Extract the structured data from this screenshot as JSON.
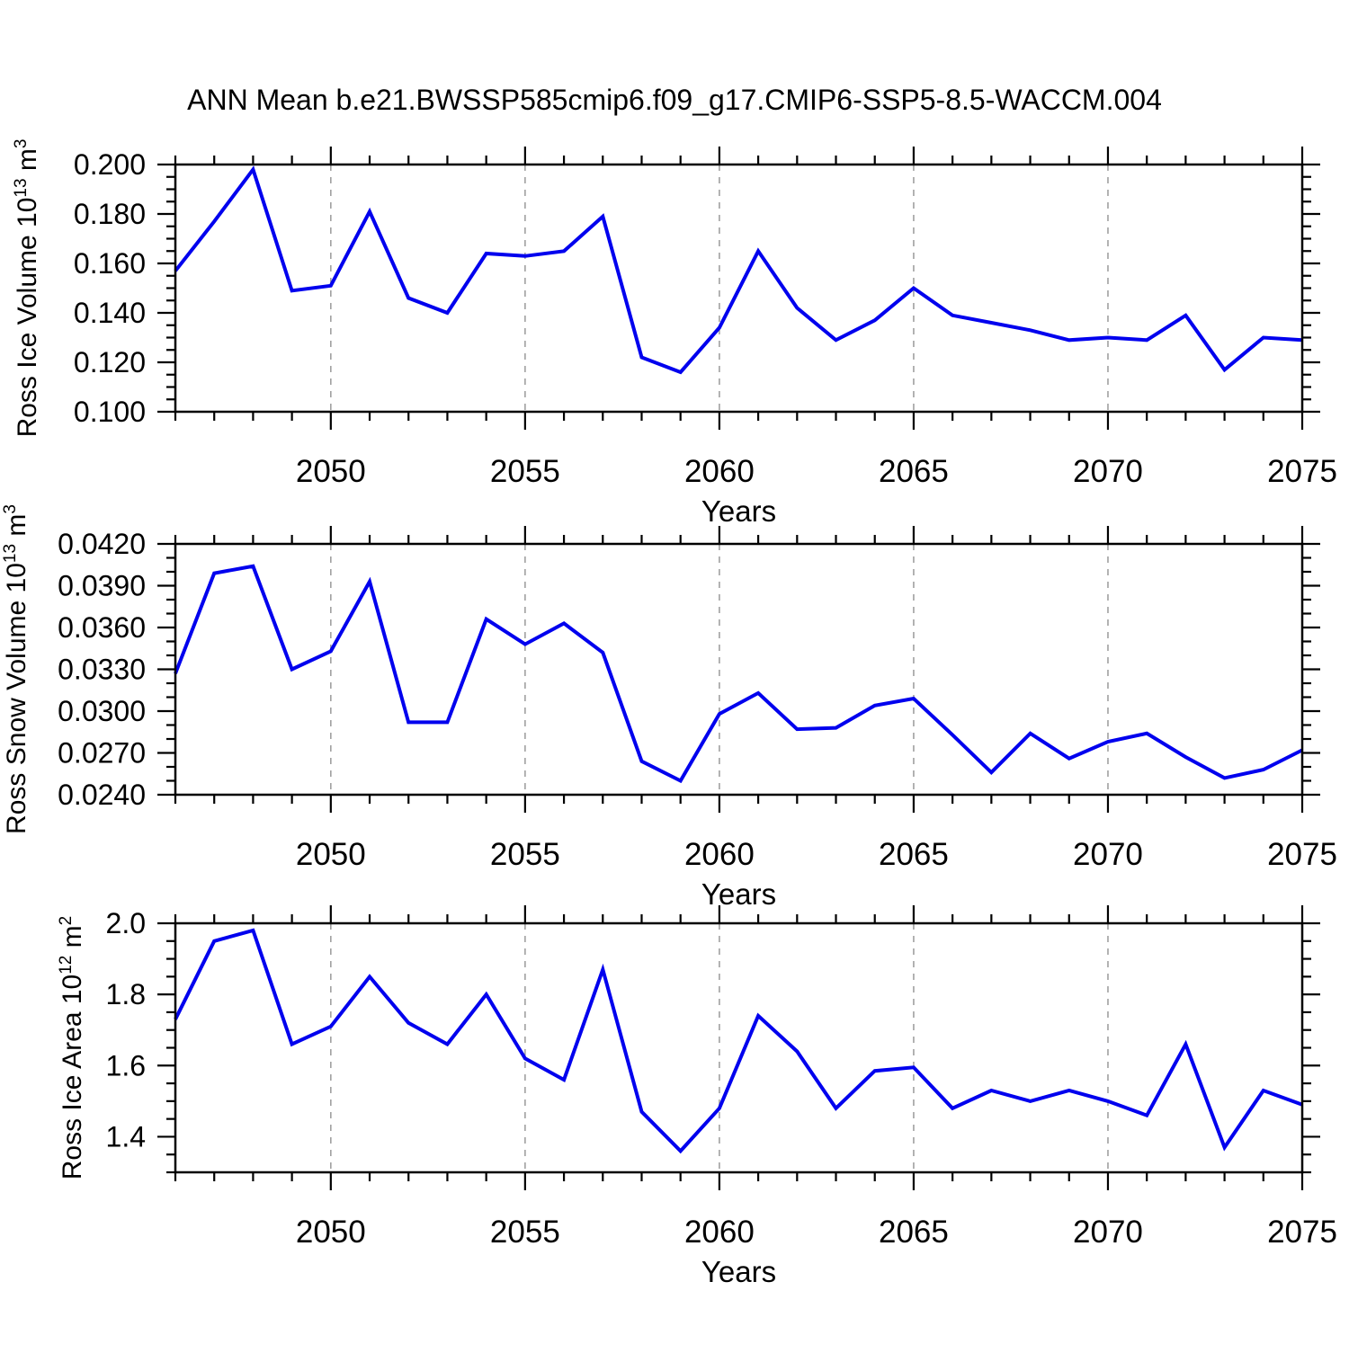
{
  "title": "ANN Mean b.e21.BWSSP585cmip6.f09_g17.CMIP6-SSP5-8.5-WACCM.004",
  "colors": {
    "line": "#0000EE",
    "axis": "#000000",
    "grid": "#A0A0A0",
    "text": "#000000",
    "background": "#FFFFFF"
  },
  "x_axis": {
    "label": "Years",
    "range": [
      2046,
      2075
    ],
    "major_ticks": [
      2050,
      2055,
      2060,
      2065,
      2070,
      2075
    ],
    "major_tick_labels": [
      "2050",
      "2055",
      "2060",
      "2065",
      "2070",
      "2075"
    ],
    "minor_tick_step": 1,
    "gridlines": [
      2050,
      2055,
      2060,
      2065,
      2070
    ]
  },
  "chart_data": [
    {
      "type": "line",
      "name": "ross-ice-volume",
      "ylabel": "Ross Ice Volume 10^13 m^3",
      "ylabel_parts": [
        {
          "t": "Ross Ice Volume 10"
        },
        {
          "t": "13",
          "sup": true
        },
        {
          "t": " m"
        },
        {
          "t": "3",
          "sup": true
        }
      ],
      "xlabel": "Years",
      "ylim": [
        0.1,
        0.2
      ],
      "y_minor_step": 0.005,
      "yticks": [
        {
          "v": 0.1,
          "label": "0.100"
        },
        {
          "v": 0.12,
          "label": "0.120"
        },
        {
          "v": 0.14,
          "label": "0.140"
        },
        {
          "v": 0.16,
          "label": "0.160"
        },
        {
          "v": 0.18,
          "label": "0.180"
        },
        {
          "v": 0.2,
          "label": "0.200"
        }
      ],
      "x": [
        2046,
        2047,
        2048,
        2049,
        2050,
        2051,
        2052,
        2053,
        2054,
        2055,
        2056,
        2057,
        2058,
        2059,
        2060,
        2061,
        2062,
        2063,
        2064,
        2065,
        2066,
        2067,
        2068,
        2069,
        2070,
        2071,
        2072,
        2073,
        2074,
        2075
      ],
      "values": [
        0.157,
        0.177,
        0.198,
        0.149,
        0.151,
        0.181,
        0.146,
        0.14,
        0.164,
        0.163,
        0.165,
        0.179,
        0.122,
        0.116,
        0.134,
        0.165,
        0.142,
        0.129,
        0.137,
        0.15,
        0.139,
        0.136,
        0.133,
        0.129,
        0.13,
        0.129,
        0.139,
        0.117,
        0.13,
        0.129
      ]
    },
    {
      "type": "line",
      "name": "ross-snow-volume",
      "ylabel": "Ross Snow Volume 10^13 m^3",
      "ylabel_parts": [
        {
          "t": "Ross Snow Volume 10"
        },
        {
          "t": "13",
          "sup": true
        },
        {
          "t": " m"
        },
        {
          "t": "3",
          "sup": true
        }
      ],
      "xlabel": "Years",
      "ylim": [
        0.024,
        0.042
      ],
      "y_minor_step": 0.001,
      "yticks": [
        {
          "v": 0.024,
          "label": "0.0240"
        },
        {
          "v": 0.027,
          "label": "0.0270"
        },
        {
          "v": 0.03,
          "label": "0.0300"
        },
        {
          "v": 0.033,
          "label": "0.0330"
        },
        {
          "v": 0.036,
          "label": "0.0360"
        },
        {
          "v": 0.039,
          "label": "0.0390"
        },
        {
          "v": 0.042,
          "label": "0.0420"
        }
      ],
      "x": [
        2046,
        2047,
        2048,
        2049,
        2050,
        2051,
        2052,
        2053,
        2054,
        2055,
        2056,
        2057,
        2058,
        2059,
        2060,
        2061,
        2062,
        2063,
        2064,
        2065,
        2066,
        2067,
        2068,
        2069,
        2070,
        2071,
        2072,
        2073,
        2074,
        2075
      ],
      "values": [
        0.0327,
        0.0399,
        0.0404,
        0.033,
        0.0343,
        0.0393,
        0.0292,
        0.0292,
        0.0366,
        0.0348,
        0.0363,
        0.0342,
        0.0264,
        0.025,
        0.0298,
        0.0313,
        0.0287,
        0.0288,
        0.0304,
        0.0309,
        0.0283,
        0.0256,
        0.0284,
        0.0266,
        0.0278,
        0.0284,
        0.0267,
        0.0252,
        0.0258,
        0.0272
      ]
    },
    {
      "type": "line",
      "name": "ross-ice-area",
      "ylabel": "Ross Ice Area 10^12 m^2",
      "ylabel_parts": [
        {
          "t": "Ross Ice Area 10"
        },
        {
          "t": "12",
          "sup": true
        },
        {
          "t": " m"
        },
        {
          "t": "2",
          "sup": true
        }
      ],
      "xlabel": "Years",
      "ylim": [
        1.3,
        2.0
      ],
      "y_minor_step": 0.05,
      "yticks": [
        {
          "v": 1.4,
          "label": "1.4"
        },
        {
          "v": 1.6,
          "label": "1.6"
        },
        {
          "v": 1.8,
          "label": "1.8"
        },
        {
          "v": 2.0,
          "label": "2.0"
        }
      ],
      "x": [
        2046,
        2047,
        2048,
        2049,
        2050,
        2051,
        2052,
        2053,
        2054,
        2055,
        2056,
        2057,
        2058,
        2059,
        2060,
        2061,
        2062,
        2063,
        2064,
        2065,
        2066,
        2067,
        2068,
        2069,
        2070,
        2071,
        2072,
        2073,
        2074,
        2075
      ],
      "values": [
        1.73,
        1.95,
        1.98,
        1.66,
        1.71,
        1.85,
        1.72,
        1.66,
        1.8,
        1.62,
        1.56,
        1.87,
        1.47,
        1.36,
        1.48,
        1.74,
        1.64,
        1.48,
        1.585,
        1.595,
        1.48,
        1.53,
        1.5,
        1.53,
        1.5,
        1.46,
        1.66,
        1.37,
        1.53,
        1.49
      ]
    }
  ]
}
